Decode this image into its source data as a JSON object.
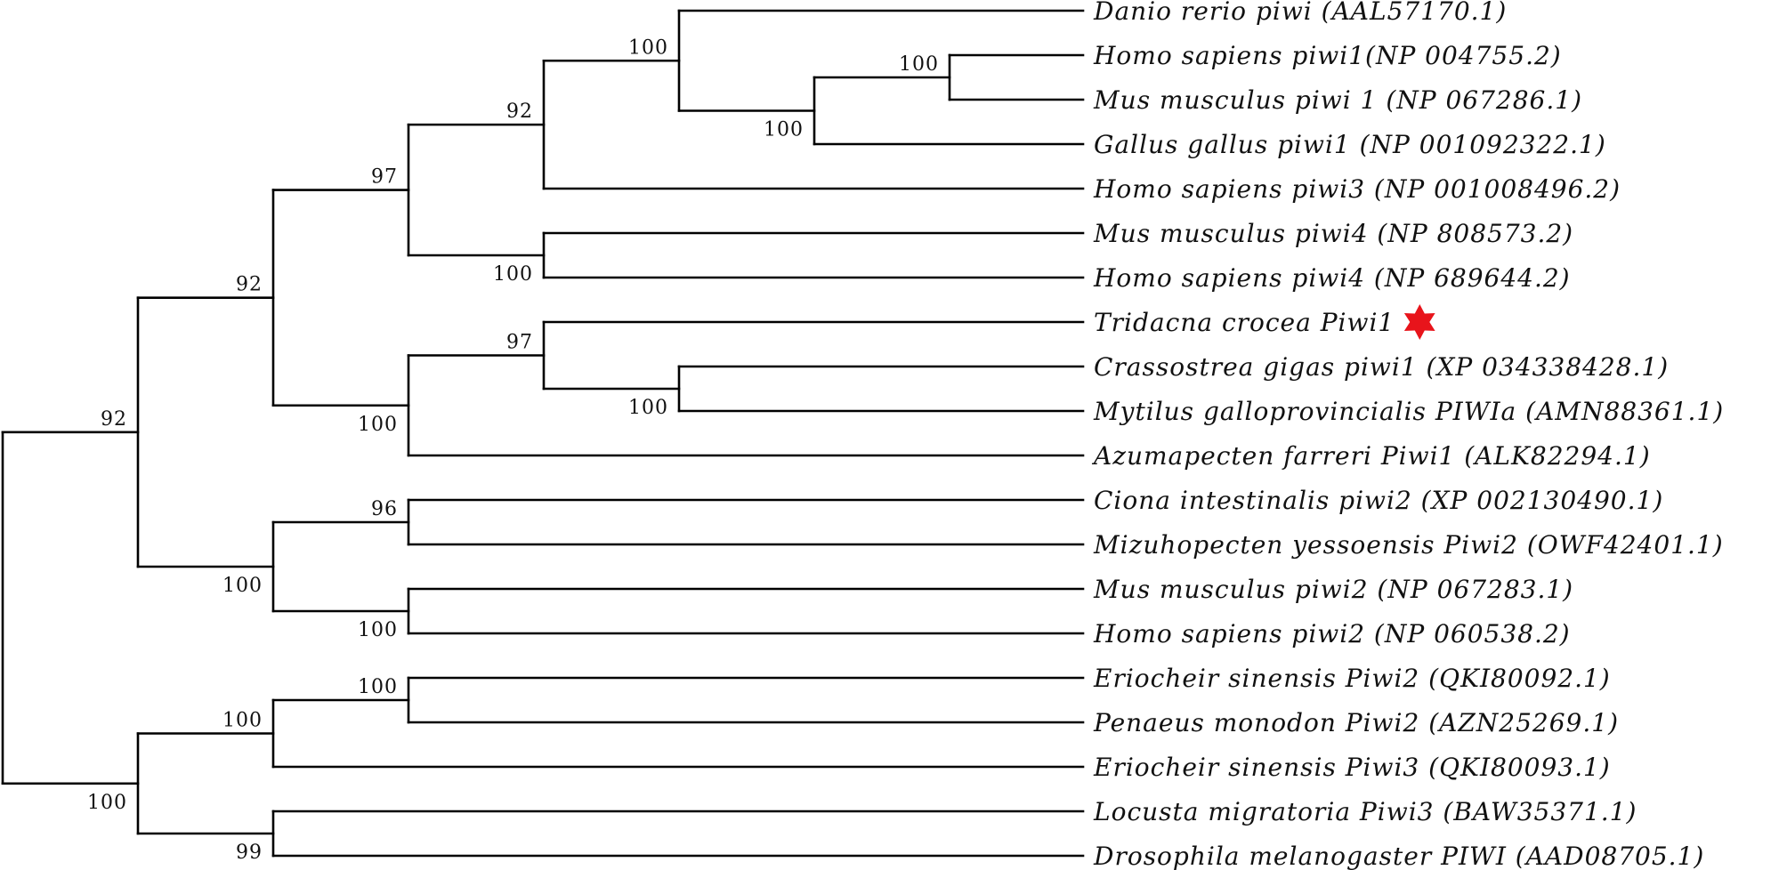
{
  "taxa": [
    "Danio rerio piwi (AAL57170.1)",
    "Homo sapiens piwi1(NP 004755.2)",
    "Mus musculus piwi 1 (NP 067286.1)",
    "Gallus gallus piwi1 (NP 001092322.1)",
    "Homo sapiens piwi3 (NP 001008496.2)",
    "Mus musculus piwi4 (NP 808573.2)",
    "Homo sapiens piwi4 (NP 689644.2)",
    "Tridacna crocea Piwi1",
    "Crassostrea gigas piwi1 (XP 034338428.1)",
    "Mytilus galloprovincialis PIWIa (AMN88361.1)",
    "Azumapecten farreri Piwi1 (ALK82294.1)",
    "Ciona intestinalis piwi2 (XP 002130490.1)",
    "Mizuhopecten yessoensis Piwi2 (OWF42401.1)",
    "Mus musculus piwi2 (NP 067283.1)",
    "Homo sapiens piwi2 (NP 060538.2)",
    "Eriocheir sinensis Piwi2 (QKI80092.1)",
    "Penaeus monodon Piwi2 (AZN25269.1)",
    "Eriocheir sinensis Piwi3 (QKI80093.1)",
    "Locusta migratoria Piwi3 (BAW35371.1)",
    "Drosophila melanogaster PIWI (AAD08705.1)"
  ],
  "highlight": {
    "taxon_index": 7,
    "marker_icon": "six-point-star-icon",
    "color": "#e8141b"
  },
  "tree": {
    "children": [
      {
        "support": "92",
        "children": [
          {
            "support": "92",
            "children": [
              {
                "support": "97",
                "children": [
                  {
                    "support": "92",
                    "children": [
                      {
                        "support": "100",
                        "children": [
                          {
                            "taxon": 0
                          },
                          {
                            "support": "100",
                            "children": [
                              {
                                "support": "100",
                                "children": [
                                  {
                                    "taxon": 1
                                  },
                                  {
                                    "taxon": 2
                                  }
                                ]
                              },
                              {
                                "taxon": 3
                              }
                            ]
                          }
                        ]
                      },
                      {
                        "taxon": 4
                      }
                    ]
                  },
                  {
                    "support": "100",
                    "children": [
                      {
                        "taxon": 5
                      },
                      {
                        "taxon": 6
                      }
                    ]
                  }
                ]
              },
              {
                "support": "100",
                "children": [
                  {
                    "support": "97",
                    "children": [
                      {
                        "taxon": 7
                      },
                      {
                        "support": "100",
                        "children": [
                          {
                            "taxon": 8
                          },
                          {
                            "taxon": 9
                          }
                        ]
                      }
                    ]
                  },
                  {
                    "taxon": 10
                  }
                ]
              }
            ]
          },
          {
            "support": "100",
            "children": [
              {
                "support": "96",
                "children": [
                  {
                    "taxon": 11
                  },
                  {
                    "taxon": 12
                  }
                ]
              },
              {
                "support": "100",
                "children": [
                  {
                    "taxon": 13
                  },
                  {
                    "taxon": 14
                  }
                ]
              }
            ]
          }
        ]
      },
      {
        "support": "100",
        "children": [
          {
            "support": "100",
            "children": [
              {
                "support": "100",
                "children": [
                  {
                    "taxon": 15
                  },
                  {
                    "taxon": 16
                  }
                ]
              },
              {
                "taxon": 17
              }
            ]
          },
          {
            "support": "99",
            "children": [
              {
                "taxon": 18
              },
              {
                "taxon": 19
              }
            ]
          }
        ]
      }
    ]
  }
}
